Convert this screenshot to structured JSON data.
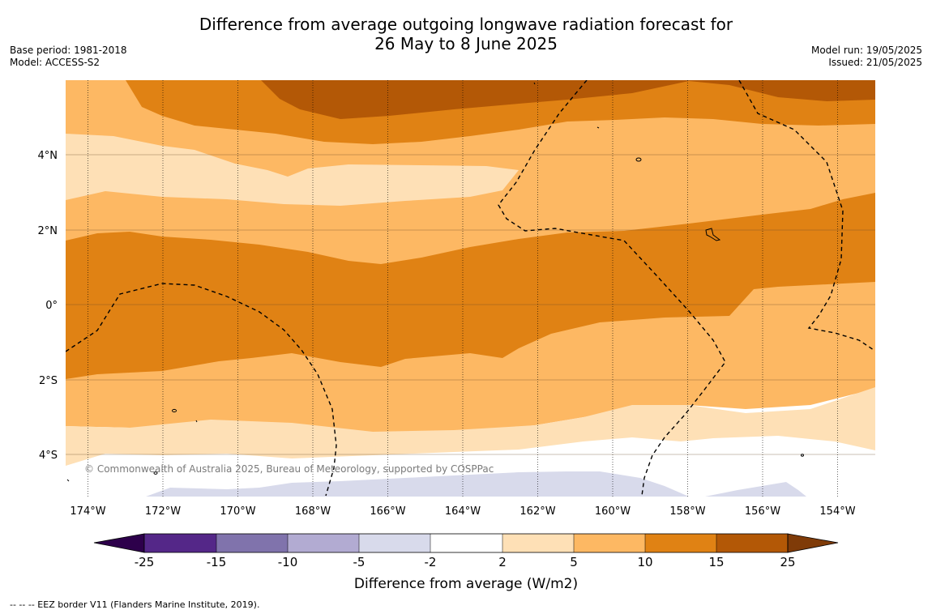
{
  "header": {
    "title_line1": "Difference from average outgoing longwave radiation forecast for",
    "title_line2": "26 May to 8 June 2025",
    "base_period": "Base period: 1981-2018",
    "model": "Model: ACCESS-S2",
    "model_run": "Model run: 19/05/2025",
    "issued": "Issued: 21/05/2025"
  },
  "map": {
    "copyright": "© Commonwealth of Australia 2025, Bureau of Meteorology, supported by COSPPac",
    "lon_labels": [
      "174°W",
      "172°W",
      "170°W",
      "168°W",
      "166°W",
      "164°W",
      "162°W",
      "160°W",
      "158°W",
      "156°W",
      "154°W"
    ],
    "lat_labels": [
      "4°N",
      "2°N",
      "0°",
      "2°S",
      "4°S"
    ],
    "lon_range": [
      -174.6,
      -153.0
    ],
    "lat_range": [
      -5.0,
      6.0
    ],
    "colors": {
      "band_15_25": "#b35806",
      "band_10_15": "#e08214",
      "band_5_10": "#fdb863",
      "band_2_5": "#fee0b6",
      "band_m2_2": "#ffffff",
      "band_m5_m2": "#d8daeb",
      "band_m10_m5": "#b2abd2",
      "band_m15_m10": "#8073ac",
      "band_m25_m15": "#542788",
      "band_below_m25": "#2d004b",
      "band_above_25": "#7f3b08"
    }
  },
  "colorbar": {
    "ticks": [
      "-25",
      "-15",
      "-10",
      "-5",
      "-2",
      "2",
      "5",
      "10",
      "15",
      "25"
    ],
    "title": "Difference from average (W/m2)"
  },
  "footer": {
    "eez_note": "-- -- -- EEZ border V11 (Flanders Marine Institute, 2019)."
  }
}
